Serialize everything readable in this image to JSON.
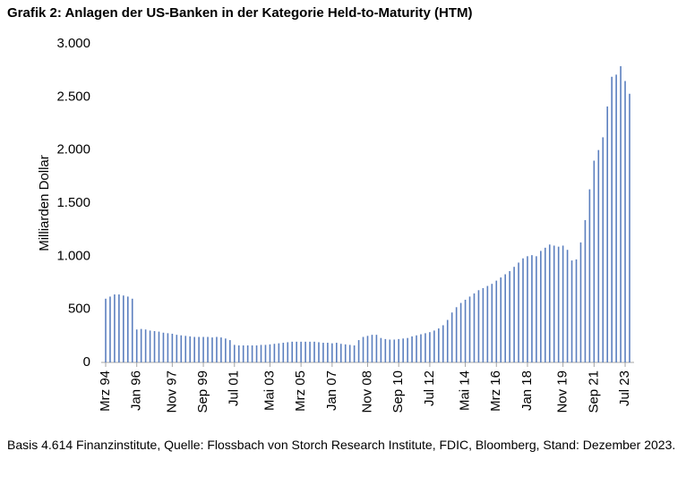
{
  "chart_data": {
    "type": "bar",
    "title": "Grafik 2: Anlagen der US-Banken in der Kategorie Held-to-Maturity (HTM)",
    "y_label": "Milliarden Dollar",
    "source": "Basis 4.614 Finanzinstitute, Quelle: Flossbach von Storch Research Institute, FDIC, Bloomberg, Stand: Dezember 2023.",
    "color": "#5b7fbf",
    "categories": [
      "Mrz 94",
      null,
      null,
      null,
      null,
      null,
      null,
      "Jan 96",
      null,
      null,
      null,
      null,
      null,
      null,
      null,
      "Nov 97",
      null,
      null,
      null,
      null,
      null,
      null,
      "Sep 99",
      null,
      null,
      null,
      null,
      null,
      null,
      "Jul 01",
      null,
      null,
      null,
      null,
      null,
      null,
      null,
      "Mai 03",
      null,
      null,
      null,
      null,
      null,
      null,
      "Mrz 05",
      null,
      null,
      null,
      null,
      null,
      null,
      "Jan 07",
      null,
      null,
      null,
      null,
      null,
      null,
      null,
      "Nov 08",
      null,
      null,
      null,
      null,
      null,
      null,
      "Sep 10",
      null,
      null,
      null,
      null,
      null,
      null,
      "Jul 12",
      null,
      null,
      null,
      null,
      null,
      null,
      null,
      "Mai 14",
      null,
      null,
      null,
      null,
      null,
      null,
      "Mrz 16",
      null,
      null,
      null,
      null,
      null,
      null,
      "Jan 18",
      null,
      null,
      null,
      null,
      null,
      null,
      null,
      "Nov 19",
      null,
      null,
      null,
      null,
      null,
      null,
      "Sep 21",
      null,
      null,
      null,
      null,
      null,
      null,
      "Jul 23",
      null
    ],
    "values": [
      600,
      620,
      640,
      640,
      630,
      620,
      600,
      310,
      315,
      310,
      300,
      295,
      290,
      280,
      275,
      270,
      260,
      255,
      250,
      245,
      240,
      240,
      240,
      240,
      235,
      240,
      235,
      225,
      210,
      165,
      160,
      160,
      160,
      160,
      160,
      165,
      165,
      170,
      175,
      180,
      185,
      190,
      195,
      195,
      195,
      195,
      195,
      195,
      190,
      185,
      185,
      180,
      185,
      175,
      170,
      165,
      160,
      210,
      240,
      250,
      260,
      260,
      230,
      220,
      215,
      215,
      220,
      225,
      230,
      245,
      255,
      265,
      275,
      285,
      300,
      320,
      350,
      400,
      470,
      520,
      560,
      590,
      620,
      650,
      680,
      700,
      720,
      740,
      770,
      800,
      830,
      860,
      900,
      940,
      980,
      1000,
      1010,
      1000,
      1050,
      1080,
      1110,
      1100,
      1090,
      1100,
      1060,
      960,
      970,
      1130,
      1340,
      1630,
      1900,
      2000,
      2120,
      2410,
      2690,
      2710,
      2790,
      2650,
      2530
    ],
    "ylim": [
      0,
      3000
    ],
    "yticks": [
      0,
      500,
      {
        "value": 1000,
        "label": "1.000"
      },
      {
        "value": 1500,
        "label": "1.500"
      },
      {
        "value": 2000,
        "label": "2.000"
      },
      {
        "value": 2500,
        "label": "2.500"
      },
      {
        "value": 3000,
        "label": "3.000"
      }
    ]
  }
}
